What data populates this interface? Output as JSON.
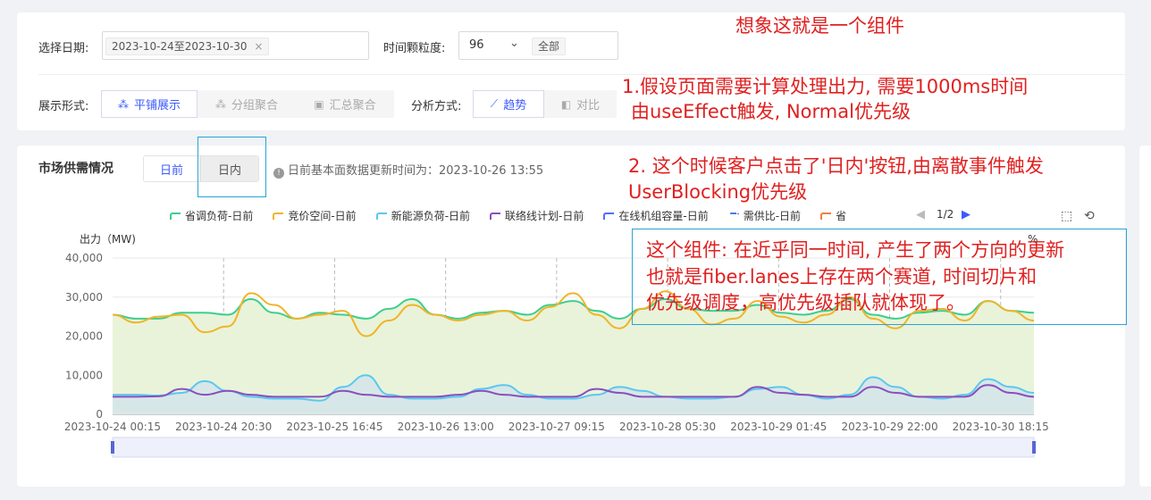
{
  "filters": {
    "date_label": "选择日期:",
    "date_value": "2023-10-24至2023-10-30",
    "granularity_label": "时间颗粒度:",
    "granularity_value": "96",
    "granularity_tag": "全部",
    "display_label": "展示形式:",
    "display_options": [
      "平铺展示",
      "分组聚合",
      "汇总聚合"
    ],
    "analysis_label": "分析方式:",
    "analysis_options": [
      "趋势",
      "对比"
    ]
  },
  "chart_panel": {
    "title": "市场供需情况",
    "tabs": [
      "日前",
      "日内"
    ],
    "update_note": "日前基本面数据更新时间为：2023-10-26 13:55",
    "legend_page": "1/2"
  },
  "annotations": {
    "a1": "想象这就是一个组件",
    "a2_line1": "1.假设页面需要计算处理出力, 需要1000ms时间",
    "a2_line2": "由useEffect触发, Normal优先级",
    "a3_line1": "2. 这个时候客户点击了'日内'按钮,由离散事件触发",
    "a3_line2": "UserBlocking优先级",
    "a4_line1": "这个组件: 在近乎同一时间, 产生了两个方向的更新",
    "a4_line2": "也就是fiber.lanes上存在两个赛道, 时间切片和",
    "a4_line3": "优先级调度，高优先级插队就体现了。"
  },
  "colors": {
    "accent": "#3d5afe",
    "annotation_red": "#e02020",
    "annotation_box": "#29a3d6"
  },
  "chart_data": {
    "type": "line",
    "ylabel": "出力（MW)",
    "ylim": [
      0,
      40000
    ],
    "yticks": [
      0,
      10000,
      20000,
      30000,
      40000
    ],
    "ytick_labels": [
      "0",
      "10,000",
      "20,000",
      "30,000",
      "40,000"
    ],
    "x_tick_labels": [
      "2023-10-24 00:15",
      "2023-10-24 20:30",
      "2023-10-25 16:45",
      "2023-10-26 13:00",
      "2023-10-27 09:15",
      "2023-10-28 05:30",
      "2023-10-29 01:45",
      "2023-10-29 22:00",
      "2023-10-30 18:15"
    ],
    "right_axis_label": "%",
    "series": [
      {
        "name": "省调负荷-日前",
        "color": "#3ccf8e",
        "area": true,
        "values": [
          25500,
          24500,
          24500,
          26000,
          26000,
          25500,
          29500,
          26000,
          24500,
          26000,
          25500,
          24500,
          27000,
          29500,
          25500,
          24500,
          26000,
          26500,
          25500,
          28000,
          29000,
          26500,
          24500,
          27000,
          29500,
          27000,
          26500,
          26500,
          28000,
          26000,
          25500,
          26500,
          29500,
          25500,
          24500,
          26000,
          26500,
          25500,
          29000,
          26500,
          26000
        ]
      },
      {
        "name": "竞价空间-日前",
        "color": "#f0b429",
        "area": false,
        "values": [
          25500,
          23500,
          25000,
          25500,
          21000,
          22500,
          31000,
          28000,
          24500,
          25500,
          26500,
          20000,
          24000,
          28000,
          25500,
          24000,
          25500,
          26500,
          24000,
          27500,
          31000,
          25500,
          22000,
          27000,
          31500,
          27000,
          23000,
          24500,
          29000,
          25000,
          23500,
          25500,
          30000,
          24500,
          22000,
          26500,
          27000,
          24000,
          29000,
          26500,
          24000
        ]
      },
      {
        "name": "新能源负荷-日前",
        "color": "#5ac8f0",
        "area": true,
        "values": [
          5000,
          5000,
          4800,
          5500,
          8500,
          6000,
          4500,
          4000,
          4000,
          3500,
          7000,
          10000,
          5000,
          4000,
          4000,
          4500,
          6500,
          7500,
          5000,
          4000,
          4000,
          5000,
          7000,
          6000,
          4500,
          4000,
          4000,
          4500,
          6500,
          7000,
          5000,
          4000,
          5000,
          9500,
          7000,
          4500,
          4000,
          5000,
          9000,
          7000,
          5500
        ]
      },
      {
        "name": "联络线计划-日前",
        "color": "#8a4fbf",
        "area": false,
        "values": [
          4500,
          4500,
          4600,
          6500,
          5000,
          6000,
          5000,
          4500,
          4500,
          4500,
          6000,
          5000,
          4500,
          4500,
          4500,
          5000,
          6000,
          5000,
          4500,
          4500,
          4500,
          6500,
          5500,
          4500,
          4500,
          4500,
          4500,
          4500,
          7000,
          5500,
          5000,
          4500,
          4500,
          7000,
          5500,
          4500,
          4500,
          4500,
          7500,
          5500,
          4500
        ]
      },
      {
        "name": "在线机组容量-日前",
        "color": "#536dfe",
        "area": false,
        "values": []
      },
      {
        "name": "需供比-日前",
        "color": "#4a7de0",
        "area": false,
        "dashed": true,
        "values": []
      },
      {
        "name": "省",
        "color": "#f07f3c",
        "area": false,
        "values": []
      }
    ]
  }
}
